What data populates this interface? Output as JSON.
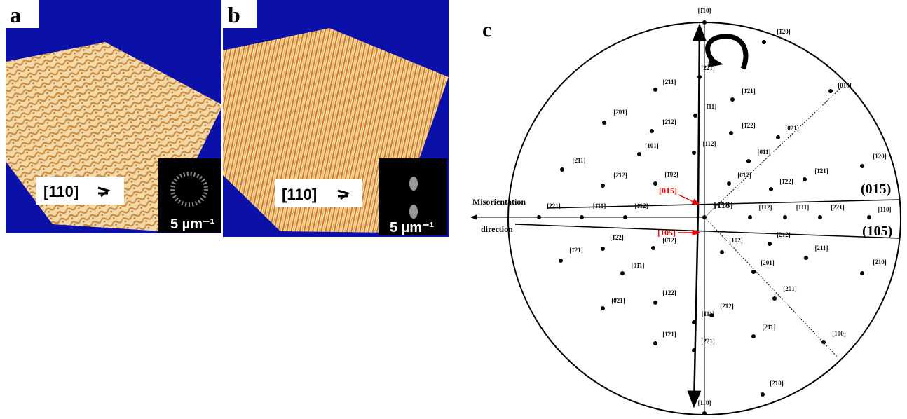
{
  "panel_a": {
    "label": "a",
    "direction": "[110]",
    "scale": "5 µm⁻¹"
  },
  "panel_b": {
    "label": "b",
    "direction": "[110]",
    "scale": "5 µm⁻¹"
  },
  "panel_c": {
    "label": "c",
    "misorientation": "Misorientation",
    "direction": "direction",
    "plane_015": "(015)",
    "plane_105": "(105)",
    "pole_015": "[015]",
    "pole_105": "[105]",
    "points": [
      "[1̄10]",
      "[1̄20]",
      "[2̄21]",
      "[2̄11]",
      "[1̄21]",
      "[010]",
      "[2̄01]",
      "[1̄11]",
      "[2̄12]",
      "[1̄22]",
      "[0̄21]",
      "[1̄01]",
      "[1̄12]",
      "[0̄11]",
      "[2̄11]",
      "[120]",
      "[2̄12]",
      "[1̄02]",
      "[0̄12]",
      "[1̄22]",
      "[1̄21]",
      "[2̄21]",
      "[1̄11]",
      "[1̄12]",
      "[1̄18]",
      "[112]",
      "[111]",
      "[221]",
      "[110]",
      "[1̄2̄2]",
      "[0̄12]",
      "[102]",
      "[212]",
      "[211]",
      "[1̄21]",
      "[210]",
      "[01̄1]",
      "[201]",
      "[122]",
      "[2̄12]",
      "[201]",
      "[0̄21]",
      "[1̄11]",
      "[21̄1]",
      "[1̄21]",
      "[100]",
      "[2̄21]",
      "[2̄10]",
      "[11̄0]"
    ]
  }
}
